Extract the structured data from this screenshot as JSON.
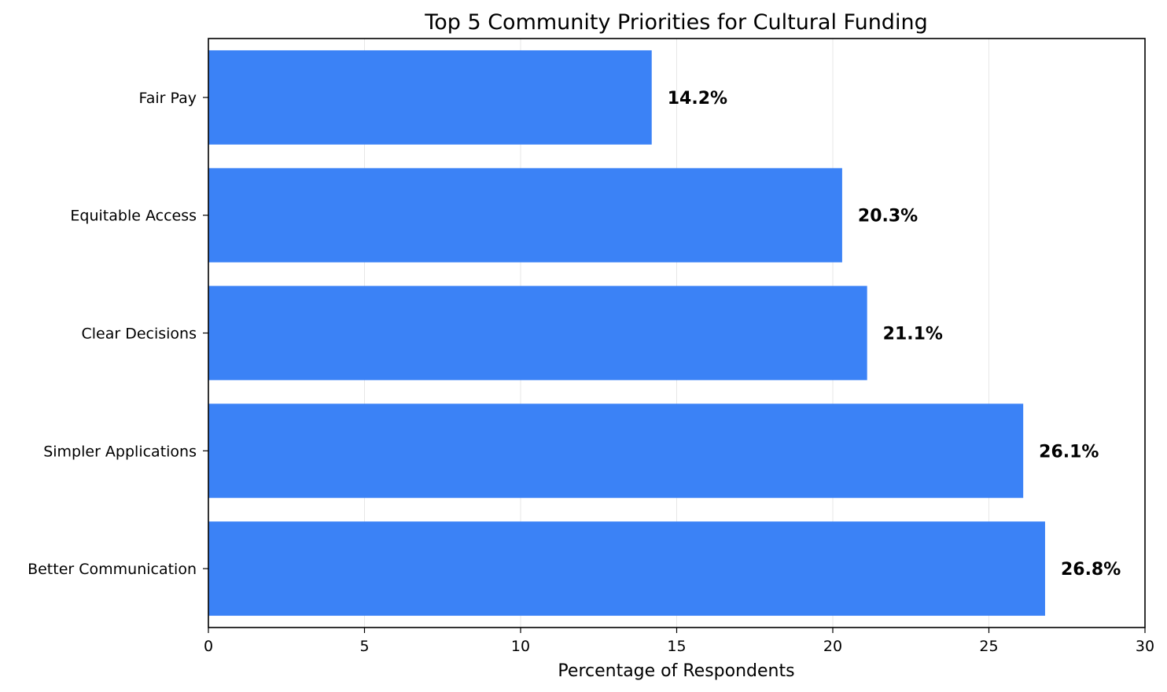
{
  "chart_data": {
    "type": "bar",
    "orientation": "horizontal",
    "title": "Top 5 Community Priorities for Cultural Funding",
    "xlabel": "Percentage of Respondents",
    "ylabel": "",
    "xlim": [
      0,
      30
    ],
    "x_ticks": [
      0,
      5,
      10,
      15,
      20,
      25,
      30
    ],
    "x_tick_labels": [
      "0",
      "5",
      "10",
      "15",
      "20",
      "25",
      "30"
    ],
    "grid": "x-axis vertical lines",
    "bar_color": "#3b82f6",
    "categories": [
      "Fair Pay",
      "Equitable Access",
      "Clear Decisions",
      "Simpler Applications",
      "Better Communication"
    ],
    "values": [
      14.2,
      20.3,
      21.1,
      26.1,
      26.8
    ],
    "data_labels": [
      "14.2%",
      "20.3%",
      "21.1%",
      "26.1%",
      "26.8%"
    ]
  }
}
